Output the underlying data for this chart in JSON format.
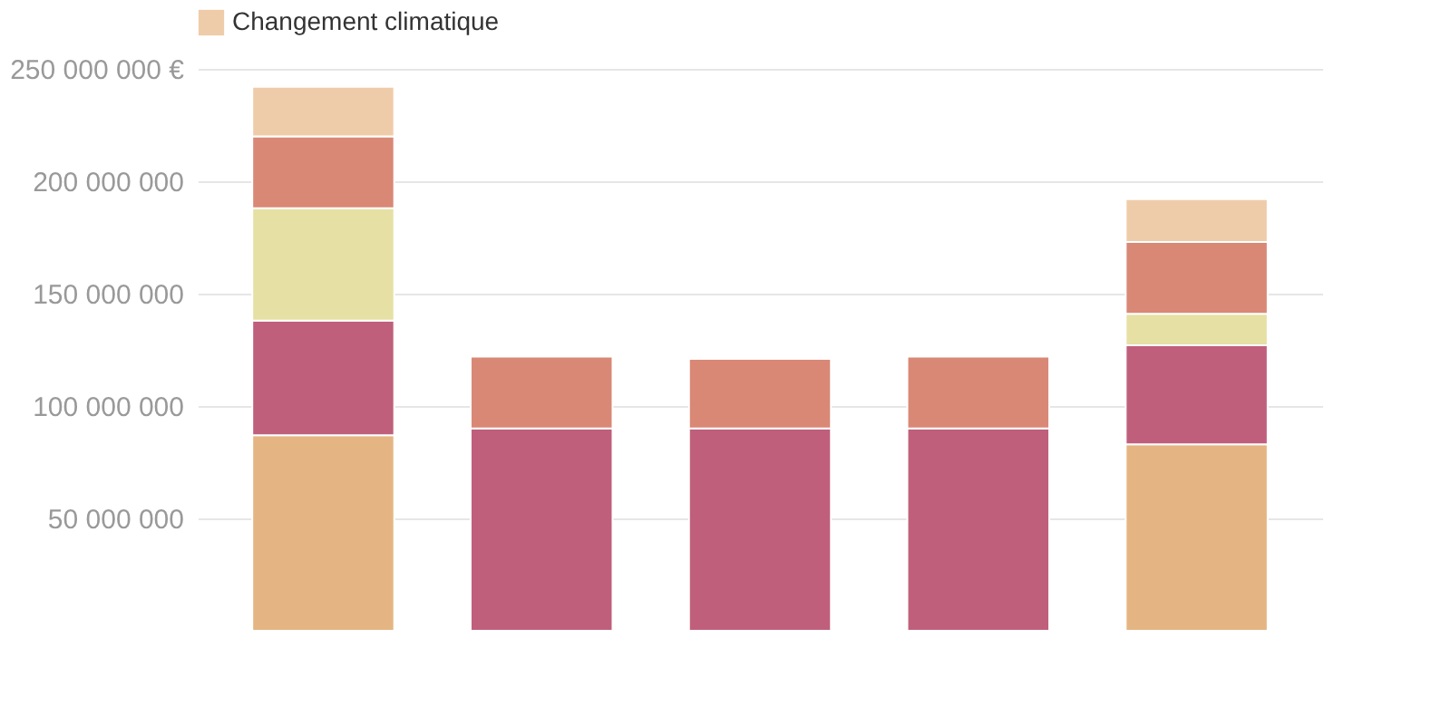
{
  "chart_data": {
    "type": "bar",
    "stacked": true,
    "categories": [
      null,
      null,
      null,
      null,
      null
    ],
    "series": [
      {
        "color": "#e4b582",
        "values": [
          87000000,
          null,
          null,
          null,
          83000000
        ]
      },
      {
        "color": "#bf5f7c",
        "values": [
          51000000,
          90000000,
          90000000,
          90000000,
          44000000
        ]
      },
      {
        "color": "#e6e0a4",
        "values": [
          50000000,
          null,
          null,
          null,
          14000000
        ]
      },
      {
        "color": "#d98876",
        "values": [
          32000000,
          32000000,
          31000000,
          32000000,
          32000000
        ]
      },
      {
        "name": "Changement climatique",
        "color": "#efcca9",
        "values": [
          22000000,
          null,
          null,
          null,
          19000000
        ]
      }
    ],
    "ylim": [
      0,
      250000000
    ],
    "yticks": [
      {
        "value": 50000000,
        "label": "50 000 000"
      },
      {
        "value": 100000000,
        "label": "100 000 000"
      },
      {
        "value": 150000000,
        "label": "150 000 000"
      },
      {
        "value": 200000000,
        "label": "200 000 000"
      },
      {
        "value": 250000000,
        "label": "250 000 000 €"
      }
    ],
    "grid": "y",
    "legend": "top"
  }
}
